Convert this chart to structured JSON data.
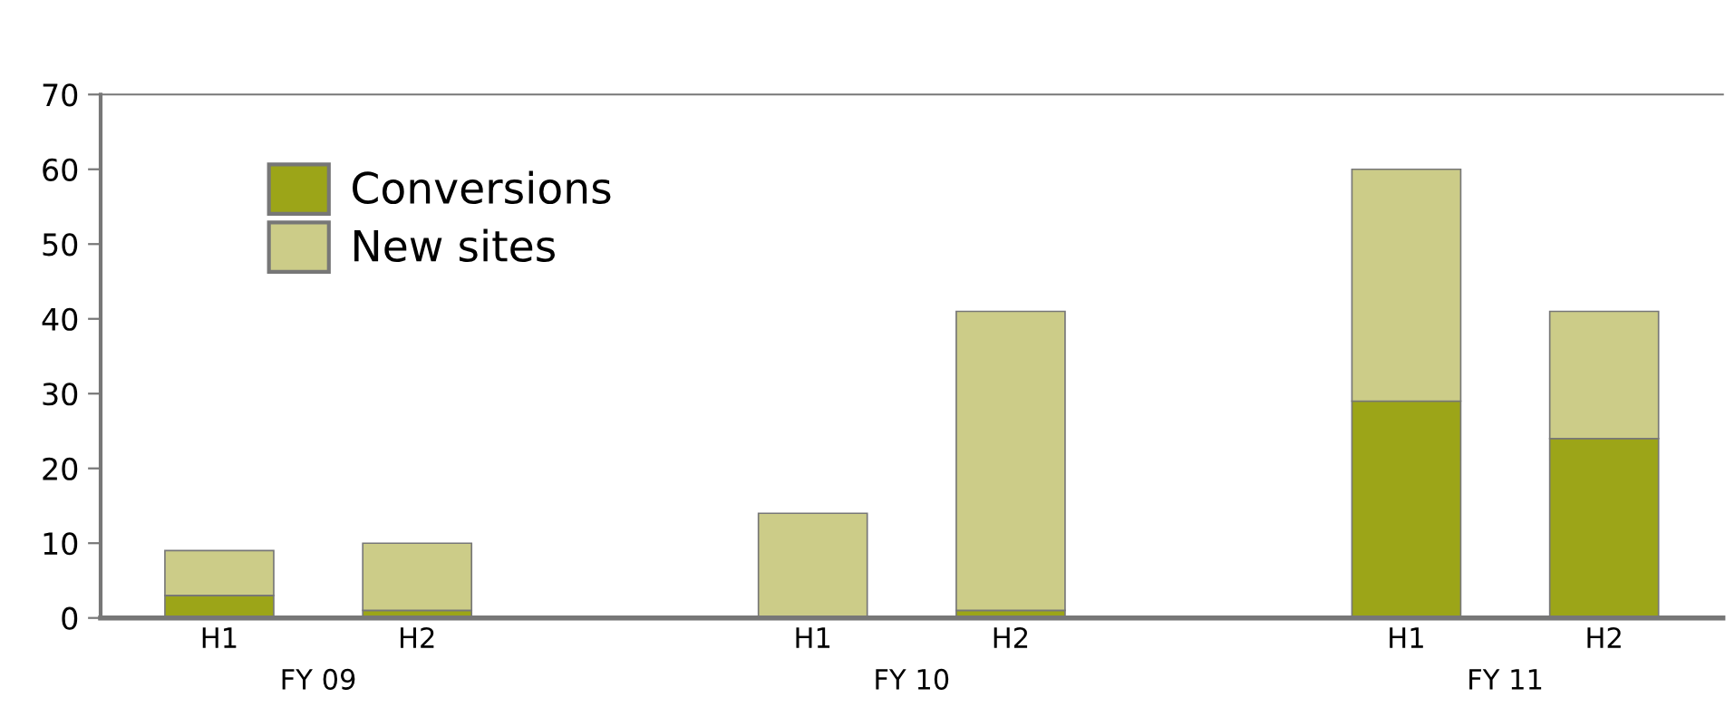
{
  "chart_data": {
    "type": "bar",
    "stacked": true,
    "categories": [
      "H1",
      "H2",
      null,
      "H1",
      "H2",
      null,
      "H1",
      "H2"
    ],
    "series": [
      {
        "name": "Conversions",
        "color": "#9ca518",
        "values": [
          3,
          1,
          null,
          0,
          1,
          null,
          29,
          24
        ]
      },
      {
        "name": "New sites",
        "color": "#cccc88",
        "values": [
          6,
          9,
          null,
          14,
          40,
          null,
          31,
          17
        ]
      }
    ],
    "annotations": [
      "FY 09",
      "FY 10",
      "FY 11"
    ],
    "ylim": [
      0,
      70
    ],
    "yticks": [
      0,
      10,
      20,
      30,
      40,
      50,
      60,
      70
    ],
    "grid": false,
    "legend": "top left"
  }
}
